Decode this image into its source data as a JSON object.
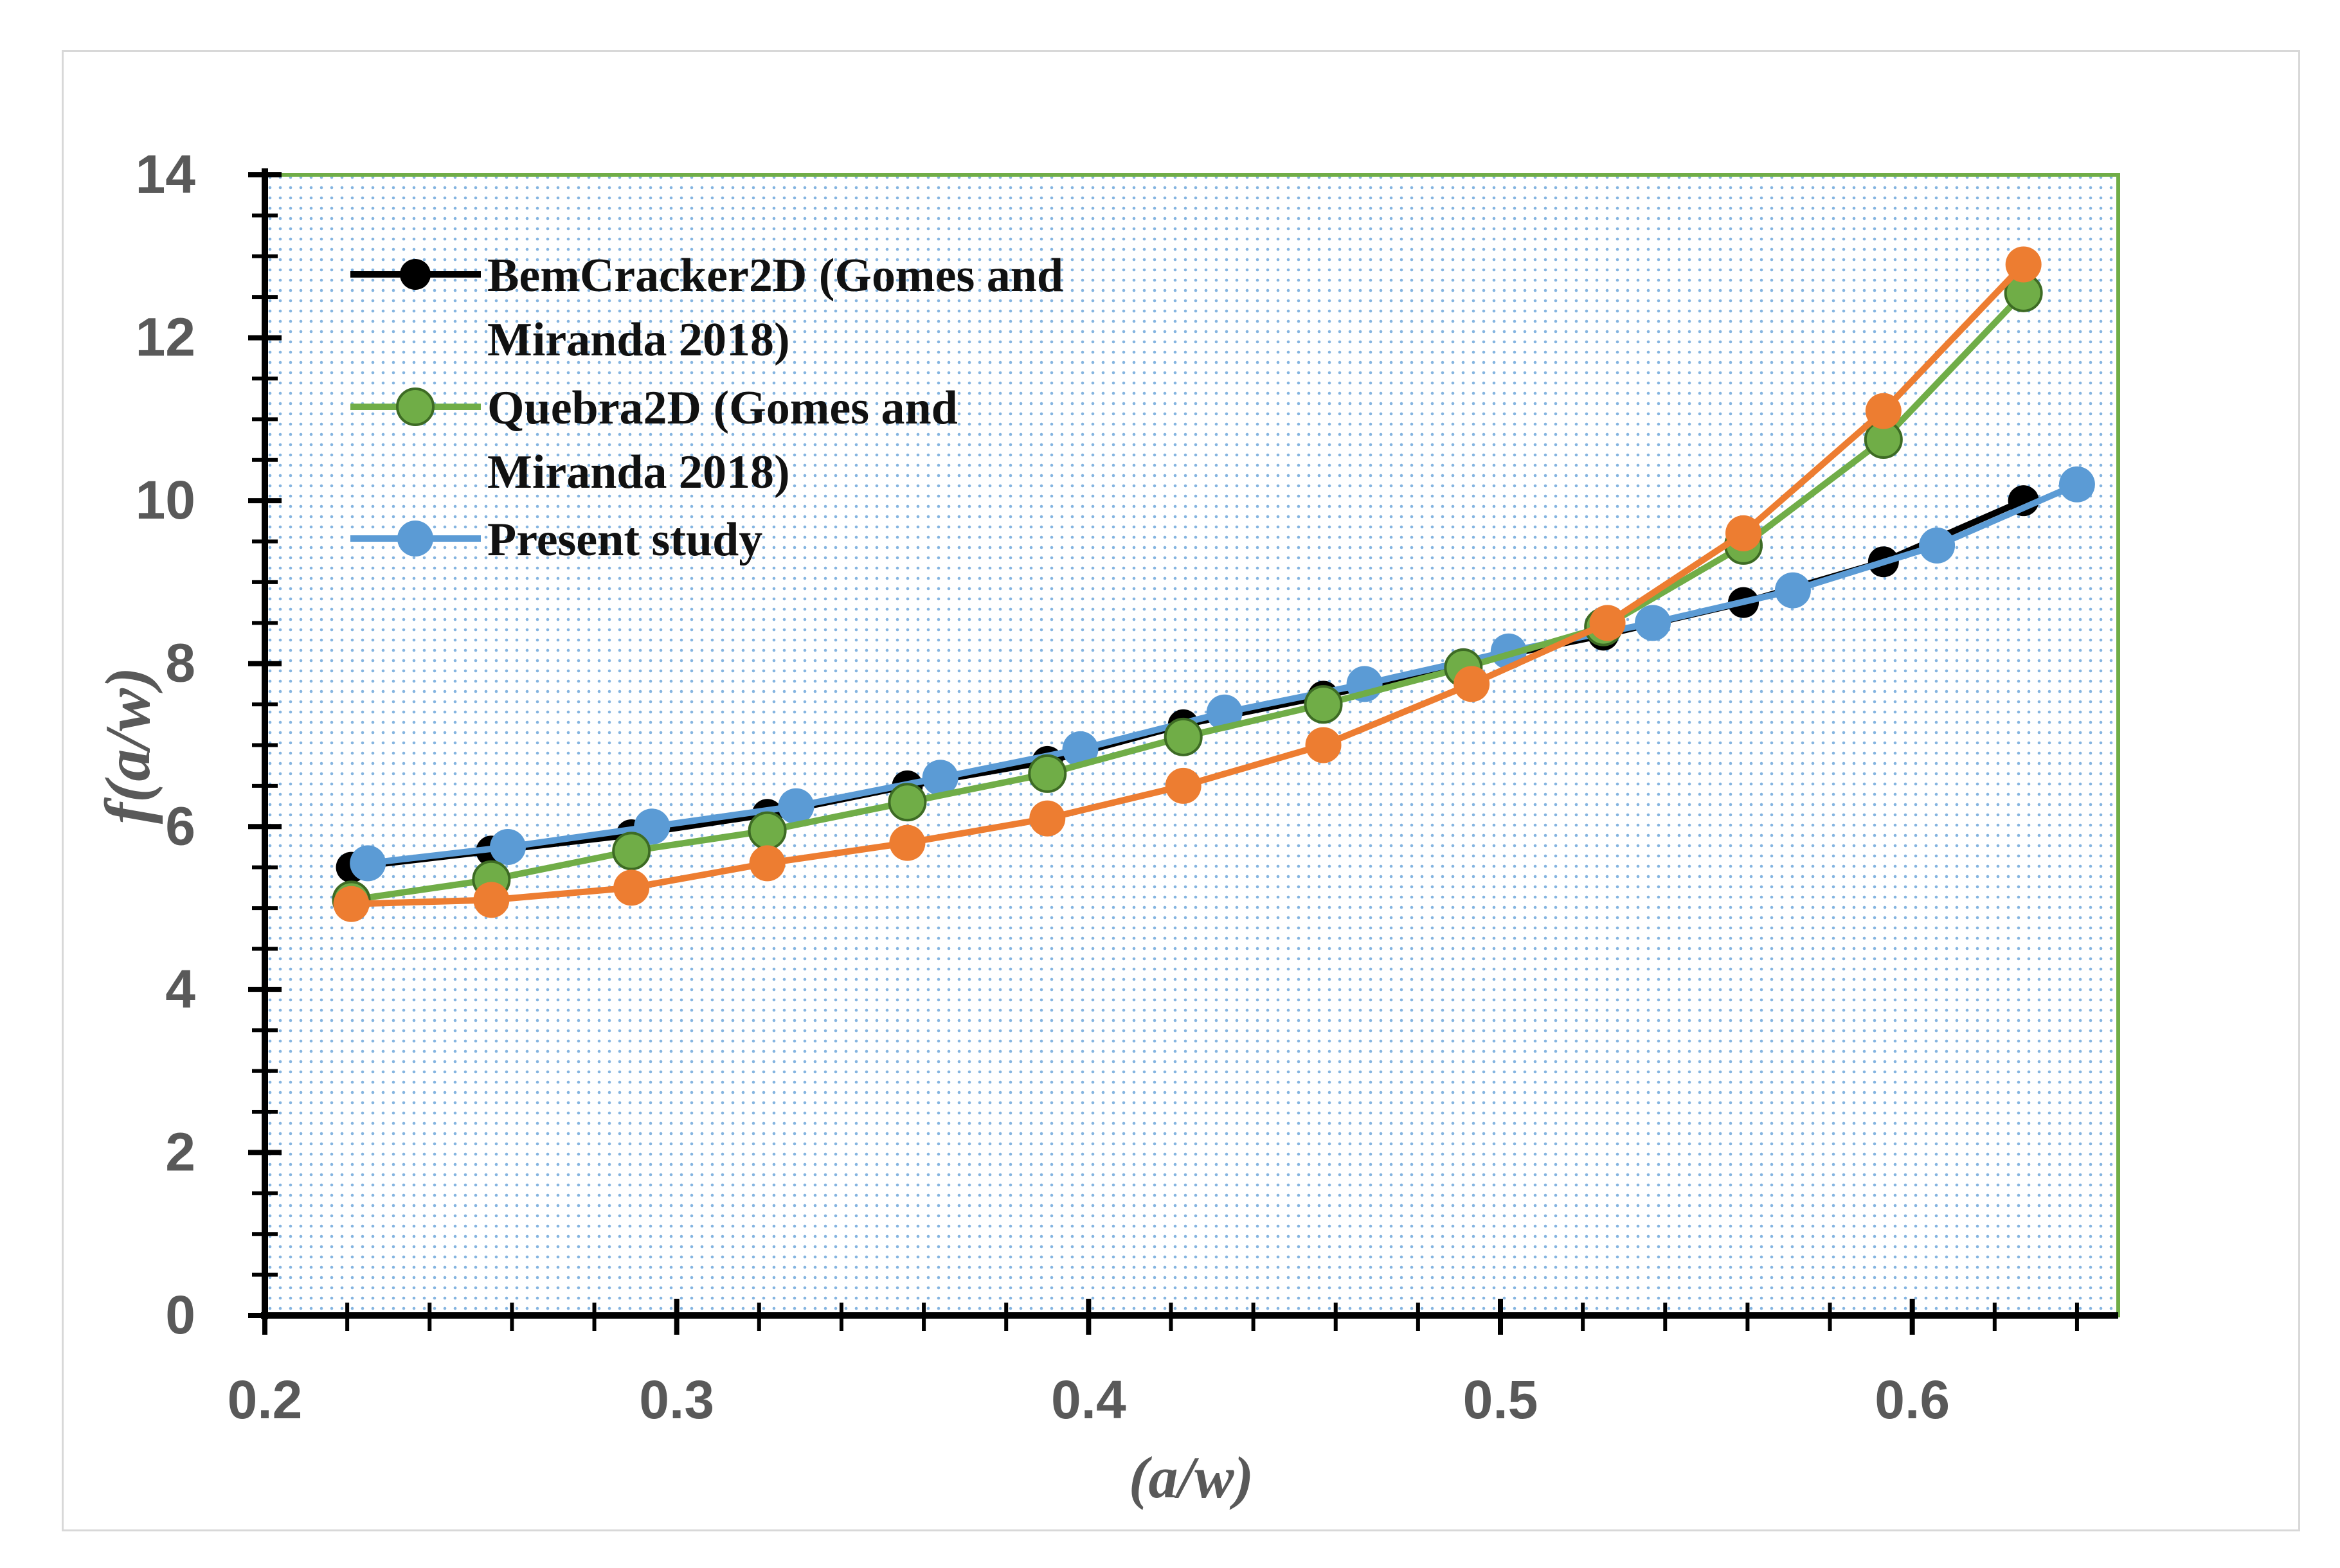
{
  "chart_data": {
    "type": "line",
    "title": "",
    "xlabel": "(a/w)",
    "ylabel": "f(a/w)",
    "xlim": [
      0.2,
      0.65
    ],
    "ylim": [
      0,
      14
    ],
    "x_ticks": [
      0.2,
      0.3,
      0.4,
      0.5,
      0.6
    ],
    "x_tick_labels": [
      "0.2",
      "0.3",
      "0.4",
      "0.5",
      "0.6"
    ],
    "y_ticks": [
      0,
      2,
      4,
      6,
      8,
      10,
      12,
      14
    ],
    "y_tick_labels": [
      "0",
      "2",
      "4",
      "6",
      "8",
      "10",
      "12",
      "14"
    ],
    "series": [
      {
        "name": "BemCracker2D (Gomes and Miranda 2018)",
        "legend_lines": [
          "BemCracker2D  (Gomes and",
          "Miranda 2018)"
        ],
        "color": "#000000",
        "x": [
          0.221,
          0.255,
          0.289,
          0.322,
          0.356,
          0.39,
          0.423,
          0.457,
          0.491,
          0.525,
          0.559,
          0.593,
          0.627
        ],
        "y": [
          5.5,
          5.7,
          5.9,
          6.15,
          6.5,
          6.8,
          7.25,
          7.6,
          8.0,
          8.35,
          8.75,
          9.25,
          10.0
        ],
        "in_legend": true
      },
      {
        "name": "Quebra2D (Gomes and Miranda 2018)",
        "legend_lines": [
          "Quebra2D  (Gomes and",
          "Miranda 2018)"
        ],
        "color": "#70ad47",
        "x": [
          0.221,
          0.255,
          0.289,
          0.322,
          0.356,
          0.39,
          0.423,
          0.457,
          0.491,
          0.525,
          0.559,
          0.593,
          0.627
        ],
        "y": [
          5.1,
          5.35,
          5.7,
          5.95,
          6.3,
          6.65,
          7.1,
          7.5,
          7.95,
          8.45,
          9.45,
          10.75,
          12.55
        ],
        "in_legend": true
      },
      {
        "name": "Present study",
        "legend_lines": [
          "Present study"
        ],
        "color": "#5b9bd5",
        "x": [
          0.225,
          0.259,
          0.294,
          0.329,
          0.364,
          0.398,
          0.433,
          0.467,
          0.502,
          0.537,
          0.571,
          0.606,
          0.64
        ],
        "y": [
          5.55,
          5.75,
          6.0,
          6.25,
          6.6,
          6.95,
          7.4,
          7.75,
          8.15,
          8.5,
          8.9,
          9.45,
          10.2
        ],
        "in_legend": true
      },
      {
        "name": "",
        "legend_lines": [],
        "color": "#ed7d31",
        "x": [
          0.221,
          0.255,
          0.289,
          0.322,
          0.356,
          0.39,
          0.423,
          0.457,
          0.493,
          0.526,
          0.559,
          0.593,
          0.627
        ],
        "y": [
          5.05,
          5.1,
          5.25,
          5.55,
          5.8,
          6.1,
          6.5,
          7.0,
          7.75,
          8.5,
          9.6,
          11.1,
          12.9
        ],
        "in_legend": false
      }
    ],
    "legend_position": "top-left",
    "grid": false,
    "plot_background": "dotted-blue"
  }
}
